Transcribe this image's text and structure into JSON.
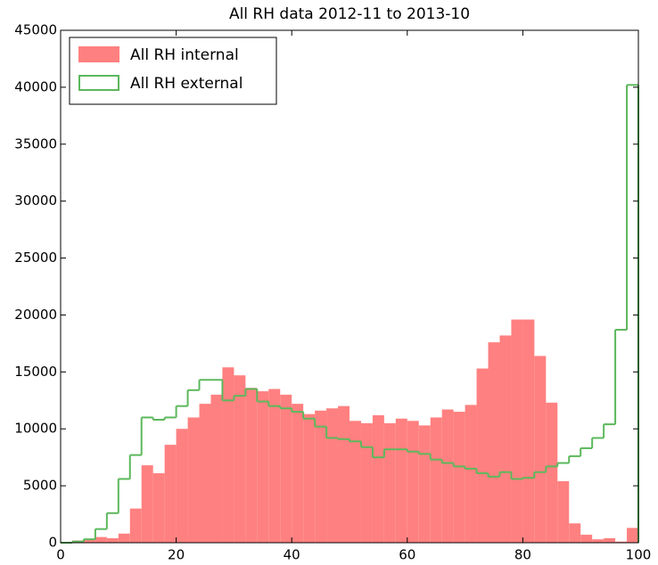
{
  "chart_data": {
    "type": "histogram",
    "title": "All RH data 2012-11 to 2013-10",
    "bins": [
      0,
      2,
      4,
      6,
      8,
      10,
      12,
      14,
      16,
      18,
      20,
      22,
      24,
      26,
      28,
      30,
      32,
      34,
      36,
      38,
      40,
      42,
      44,
      46,
      48,
      50,
      52,
      54,
      56,
      58,
      60,
      62,
      64,
      66,
      68,
      70,
      72,
      74,
      76,
      78,
      80,
      82,
      84,
      86,
      88,
      90,
      92,
      94,
      96,
      98,
      100
    ],
    "series": [
      {
        "name": "All RH internal",
        "color": "#ff8080",
        "style": "filled",
        "values": [
          0,
          200,
          300,
          500,
          400,
          800,
          3000,
          6800,
          6100,
          8600,
          10000,
          11000,
          12200,
          13000,
          15400,
          14700,
          13600,
          13300,
          13500,
          13000,
          12200,
          11300,
          11600,
          11800,
          12000,
          10700,
          10500,
          11200,
          10500,
          10900,
          10700,
          10300,
          11000,
          11700,
          11500,
          12100,
          15300,
          17600,
          18200,
          19600,
          19600,
          16400,
          12300,
          5400,
          1700,
          700,
          300,
          400,
          100,
          1300
        ]
      },
      {
        "name": "All RH external",
        "color": "#5cb85c",
        "style": "step",
        "values": [
          0,
          100,
          300,
          1200,
          2600,
          5600,
          7700,
          11000,
          10800,
          11000,
          12000,
          13400,
          14300,
          14300,
          12500,
          12900,
          13500,
          12400,
          12000,
          11800,
          11500,
          10900,
          10200,
          9200,
          9100,
          8900,
          8400,
          7500,
          8200,
          8200,
          8000,
          7800,
          7300,
          7000,
          6700,
          6500,
          6100,
          5800,
          6200,
          5600,
          5700,
          6200,
          6700,
          7000,
          7600,
          8300,
          9200,
          10400,
          18700,
          40200
        ]
      }
    ],
    "xlim": [
      0,
      100
    ],
    "xticks": [
      0,
      20,
      40,
      60,
      80,
      100
    ],
    "ylim": [
      0,
      45000
    ],
    "yticks": [
      0,
      5000,
      10000,
      15000,
      20000,
      25000,
      30000,
      35000,
      40000,
      45000
    ],
    "grid": false,
    "legend": "upper left"
  }
}
